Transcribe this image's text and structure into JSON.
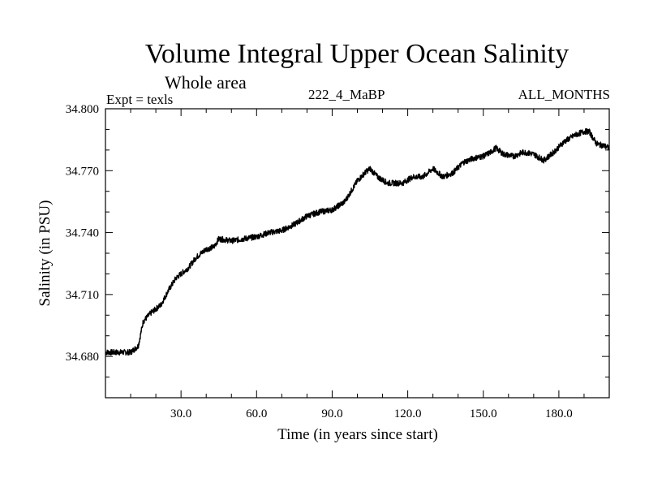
{
  "title": "Volume Integral Upper Ocean Salinity",
  "subtitle": "Whole area",
  "left_label": "Expt = texls",
  "center_label": "222_4_MaBP",
  "right_label": "ALL_MONTHS",
  "chart_data": {
    "type": "line",
    "title": "Volume Integral Upper Ocean Salinity",
    "xlabel": "Time (in years since start)",
    "ylabel": "Salinity (in PSU)",
    "xlim": [
      0,
      200
    ],
    "ylim": [
      34.66,
      34.8
    ],
    "xticks": [
      30,
      60,
      90,
      120,
      150,
      180
    ],
    "xtick_labels": [
      "30.0",
      "60.0",
      "90.0",
      "120.0",
      "150.0",
      "180.0"
    ],
    "yticks": [
      34.68,
      34.71,
      34.74,
      34.77,
      34.8
    ],
    "ytick_labels": [
      "34.680",
      "34.710",
      "34.740",
      "34.770",
      "34.800"
    ],
    "grid": false,
    "color": "#000000",
    "series": [
      {
        "name": "Salinity",
        "x": [
          0,
          5,
          10,
          13,
          15,
          18,
          22,
          25,
          28,
          30,
          33,
          36,
          40,
          43,
          45,
          50,
          55,
          60,
          65,
          70,
          75,
          80,
          85,
          90,
          95,
          100,
          103,
          105,
          108,
          112,
          118,
          122,
          126,
          130,
          134,
          138,
          142,
          146,
          150,
          153,
          155,
          158,
          162,
          166,
          170,
          174,
          178,
          182,
          186,
          190,
          192,
          195,
          198,
          200
        ],
        "y": [
          34.682,
          34.682,
          34.682,
          34.685,
          34.697,
          34.701,
          34.705,
          34.712,
          34.718,
          34.72,
          34.723,
          34.728,
          34.732,
          34.733,
          34.737,
          34.736,
          34.737,
          34.738,
          34.74,
          34.741,
          34.744,
          34.748,
          34.75,
          34.751,
          34.755,
          34.765,
          34.769,
          34.771,
          34.767,
          34.764,
          34.764,
          34.767,
          34.767,
          34.771,
          34.767,
          34.769,
          34.774,
          34.776,
          34.777,
          34.779,
          34.781,
          34.778,
          34.777,
          34.779,
          34.778,
          34.775,
          34.779,
          34.784,
          34.787,
          34.789,
          34.789,
          34.783,
          34.782,
          34.781
        ]
      }
    ]
  }
}
